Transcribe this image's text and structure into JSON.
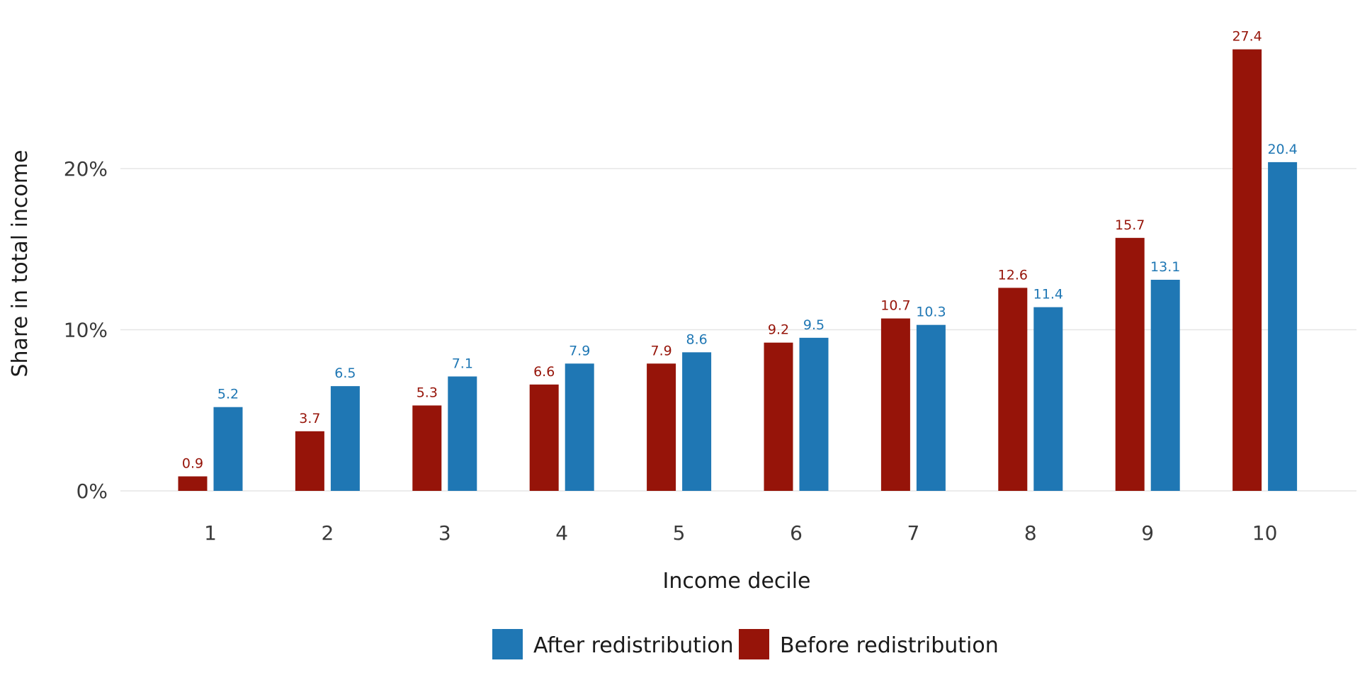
{
  "chart_data": {
    "type": "bar",
    "title": "",
    "xlabel": "Income decile",
    "ylabel": "Share in total income",
    "categories": [
      "1",
      "2",
      "3",
      "4",
      "5",
      "6",
      "7",
      "8",
      "9",
      "10"
    ],
    "series": [
      {
        "name": "Before redistribution",
        "color": "#961409",
        "values": [
          0.9,
          3.7,
          5.3,
          6.6,
          7.9,
          9.2,
          10.7,
          12.6,
          15.7,
          27.4
        ]
      },
      {
        "name": "After redistribution",
        "color": "#1f77b4",
        "values": [
          5.2,
          6.5,
          7.1,
          7.9,
          8.6,
          9.5,
          10.3,
          11.4,
          13.1,
          20.4
        ]
      }
    ],
    "yticks": [
      0,
      10,
      20
    ],
    "ytick_labels": [
      "0%",
      "10%",
      "20%"
    ],
    "ylim": [
      0,
      28
    ],
    "grid": true,
    "legend": {
      "position": "bottom",
      "entries": [
        "After redistribution",
        "Before redistribution"
      ]
    }
  }
}
